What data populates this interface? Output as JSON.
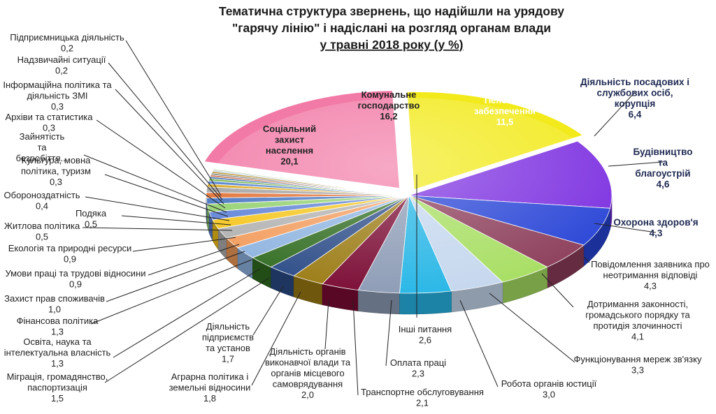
{
  "chart_data": {
    "type": "pie",
    "title_lines": [
      "Тематична структура звернень, що надійшли на урядову",
      "\"гарячу лінію\" і надіслані на розгляд органам влади",
      "у травні 2018 року (у %)"
    ],
    "slices": [
      {
        "label": "Комунальне господарство",
        "value": 16.2,
        "value_text": "16,2",
        "color": "#f2ea1a"
      },
      {
        "label": "Пенсійне забезпечення",
        "value": 11.5,
        "value_text": "11,5",
        "color": "#7b2ee0"
      },
      {
        "label": "Діяльність посадових і службових осіб, корупція",
        "value": 6.4,
        "value_text": "6,4",
        "color": "#2743d6"
      },
      {
        "label": "Будівництво та благоустрій",
        "value": 4.6,
        "value_text": "4,6",
        "color": "#8c3d5a"
      },
      {
        "label": "Охорона здоров'я",
        "value": 4.3,
        "value_text": "4,3",
        "color": "#a7de62"
      },
      {
        "label": "Повідомлення заявника про неотримання відповіді",
        "value": 4.3,
        "value_text": "4,3",
        "color": "#c5d7ee"
      },
      {
        "label": "Дотримання законності, громадського порядку та протидія злочинності",
        "value": 4.1,
        "value_text": "4,1",
        "color": "#27b6e6"
      },
      {
        "label": "Функціонування мереж зв'язку",
        "value": 3.3,
        "value_text": "3,3",
        "color": "#8c9bb5"
      },
      {
        "label": "Робота органів юстиції",
        "value": 3.0,
        "value_text": "3,0",
        "color": "#7a0a33"
      },
      {
        "label": "Інші питання",
        "value": 2.6,
        "value_text": "2,6",
        "color": "#9a7a12"
      },
      {
        "label": "Оплата праці",
        "value": 2.3,
        "value_text": "2,3",
        "color": "#2a4a86"
      },
      {
        "label": "Транспортне обслуговування",
        "value": 2.1,
        "value_text": "2,1",
        "color": "#2f6b1f"
      },
      {
        "label": "Діяльність органів виконавчої влади та органів місцевого самоврядування",
        "value": 2.0,
        "value_text": "2,0",
        "color": "#8db3e0"
      },
      {
        "label": "Аграрна політика і земельні відносини",
        "value": 1.8,
        "value_text": "1,8",
        "color": "#f29a5a"
      },
      {
        "label": "Діяльність підприємств та установ",
        "value": 1.7,
        "value_text": "1,7",
        "color": "#b0b0b0"
      },
      {
        "label": "Міграція, громадянство, паспортизація",
        "value": 1.5,
        "value_text": "1,5",
        "color": "#f5c416"
      },
      {
        "label": "Освіта, наука та інтелектуальна власність",
        "value": 1.3,
        "value_text": "1,3",
        "color": "#5b7fd6"
      },
      {
        "label": "Фінансова політика",
        "value": 1.3,
        "value_text": "1,3",
        "color": "#8fcf6a"
      },
      {
        "label": "Захист прав споживачів",
        "value": 1.0,
        "value_text": "1,0",
        "color": "#3f6fc0"
      },
      {
        "label": "Умови праці та трудові відносини",
        "value": 0.9,
        "value_text": "0,9",
        "color": "#e06a2a"
      },
      {
        "label": "Екологія та природні ресурси",
        "value": 0.9,
        "value_text": "0,9",
        "color": "#a0a0a0"
      },
      {
        "label": "Житлова політика",
        "value": 0.5,
        "value_text": "0,5",
        "color": "#d9a514"
      },
      {
        "label": "Подяка",
        "value": 0.5,
        "value_text": "0,5",
        "color": "#4a7ad0"
      },
      {
        "label": "Обороноздатність",
        "value": 0.4,
        "value_text": "0,4",
        "color": "#6fb04a"
      },
      {
        "label": "Культура, мовна політика, туризм",
        "value": 0.3,
        "value_text": "0,3",
        "color": "#2d5aa8"
      },
      {
        "label": "Зайнятість та безробіття...",
        "value": 0.3,
        "value_text": "",
        "color": "#c06030"
      },
      {
        "label": "Архіви та статистика",
        "value": 0.3,
        "value_text": "0,3",
        "color": "#7a7a7a"
      },
      {
        "label": "Інформаційна політика та діяльність ЗМІ",
        "value": 0.3,
        "value_text": "0,3",
        "color": "#b08a1a"
      },
      {
        "label": "Надзвичайні ситуації",
        "value": 0.2,
        "value_text": "0,2",
        "color": "#9ab4e0"
      },
      {
        "label": "Підприємницька діяльність",
        "value": 0.2,
        "value_text": "0,2",
        "color": "#b8d8a0"
      },
      {
        "label": "Соціальний захист населення",
        "value": 20.1,
        "value_text": "20,1",
        "color": "#f27aa6"
      }
    ],
    "grid": false,
    "legend": "none"
  }
}
